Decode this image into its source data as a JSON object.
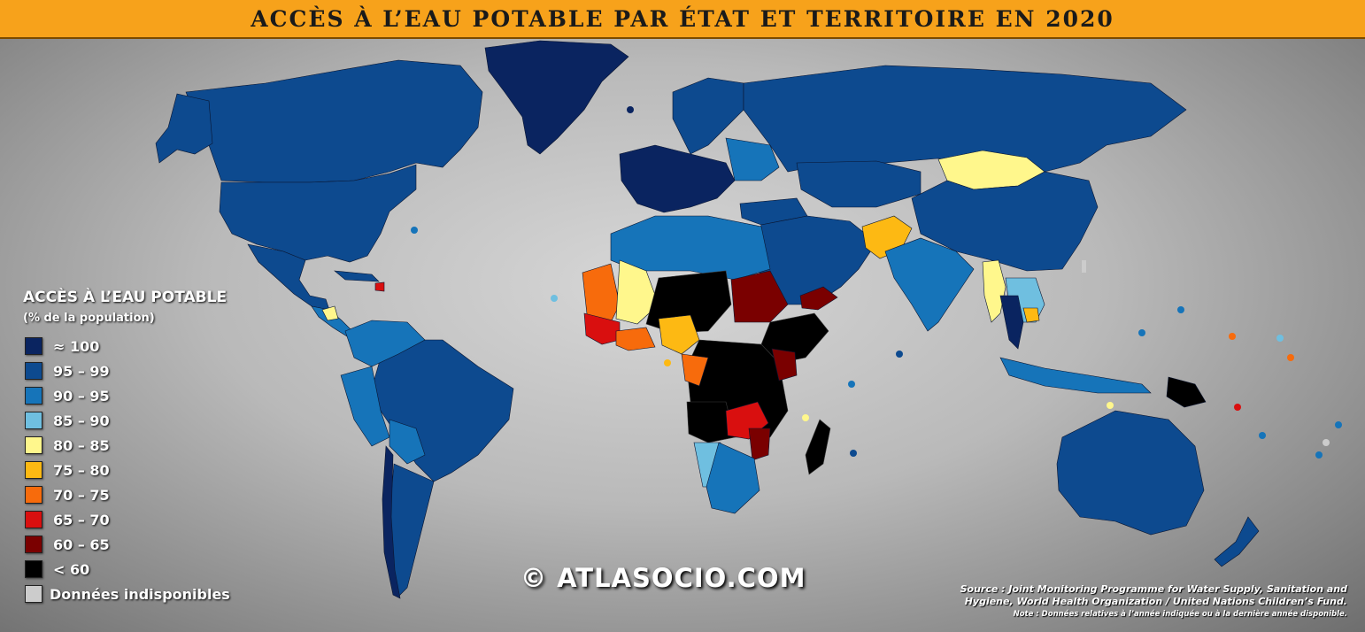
{
  "title": "ACCÈS À L’EAU POTABLE PAR ÉTAT ET TERRITOIRE EN 2020",
  "legend": {
    "title": "ACCÈS À L’EAU POTABLE",
    "subtitle": "(% de la population)",
    "classes": [
      {
        "label": "≈ 100",
        "color": "#0a2460"
      },
      {
        "label": "95 – 99",
        "color": "#0d4a8f"
      },
      {
        "label": "90 – 95",
        "color": "#1674b9"
      },
      {
        "label": "85 – 90",
        "color": "#6fbfe0"
      },
      {
        "label": "80 – 85",
        "color": "#fff78c"
      },
      {
        "label": "75 – 80",
        "color": "#fdb913"
      },
      {
        "label": "70 – 75",
        "color": "#f76b0c"
      },
      {
        "label": "65 – 70",
        "color": "#d90f0f"
      },
      {
        "label": "60 – 65",
        "color": "#7a0000"
      },
      {
        "label": "< 60",
        "color": "#000000"
      },
      {
        "label": "Données indisponibles",
        "color": "#cccccc"
      }
    ]
  },
  "copyright": "© ATLASOCIO.COM",
  "source_line1": "Source : Joint Monitoring Programme for Water Supply, Sanitation and",
  "source_line2": "Hygiene, World Health Organization / United Nations Children’s Fund.",
  "note": "Note : Données relatives à l’année indiquée ou à la dernière année disponible."
}
